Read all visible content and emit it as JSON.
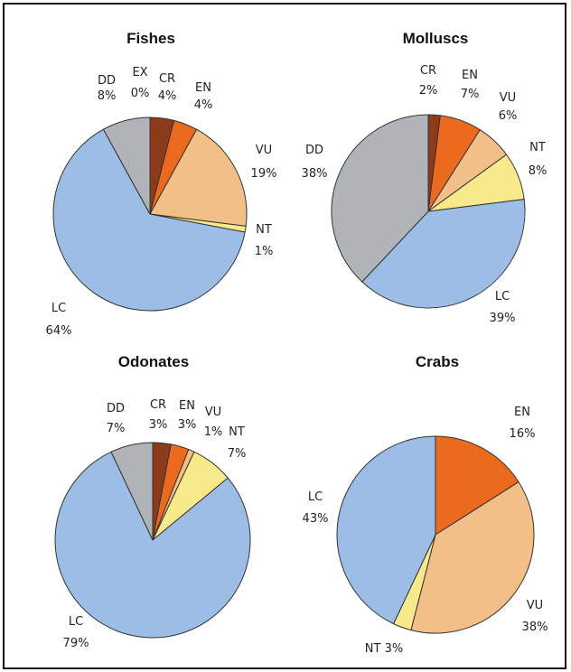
{
  "colors": {
    "EX": "#6b1e0e",
    "CR": "#8b3a1a",
    "EN": "#ec6a1e",
    "VU": "#f2bf88",
    "NT": "#f8ea8a",
    "LC": "#9cbde6",
    "DD": "#b0b4b8"
  },
  "chart_data": [
    {
      "type": "pie",
      "title": "Fishes",
      "slices": [
        {
          "category": "EX",
          "label_line1": "EX",
          "label_line2": "0%",
          "value": 0
        },
        {
          "category": "CR",
          "label_line1": "CR",
          "label_line2": "4%",
          "value": 4
        },
        {
          "category": "EN",
          "label_line1": "EN",
          "label_line2": "4%",
          "value": 4
        },
        {
          "category": "VU",
          "label_line1": "VU",
          "label_line2": "19%",
          "value": 19
        },
        {
          "category": "NT",
          "label_line1": "NT",
          "label_line2": "1%",
          "value": 1
        },
        {
          "category": "LC",
          "label_line1": "LC",
          "label_line2": "64%",
          "value": 64
        },
        {
          "category": "DD",
          "label_line1": "DD",
          "label_line2": "8%",
          "value": 8
        }
      ]
    },
    {
      "type": "pie",
      "title": "Molluscs",
      "slices": [
        {
          "category": "CR",
          "label_line1": "CR",
          "label_line2": "2%",
          "value": 2
        },
        {
          "category": "EN",
          "label_line1": "EN",
          "label_line2": "7%",
          "value": 7
        },
        {
          "category": "VU",
          "label_line1": "VU",
          "label_line2": "6%",
          "value": 6
        },
        {
          "category": "NT",
          "label_line1": "NT",
          "label_line2": "8%",
          "value": 8
        },
        {
          "category": "LC",
          "label_line1": "LC",
          "label_line2": "39%",
          "value": 39
        },
        {
          "category": "DD",
          "label_line1": "DD",
          "label_line2": "38%",
          "value": 38
        }
      ]
    },
    {
      "type": "pie",
      "title": "Odonates",
      "slices": [
        {
          "category": "CR",
          "label_line1": "CR",
          "label_line2": "3%",
          "value": 3
        },
        {
          "category": "EN",
          "label_line1": "EN",
          "label_line2": "3%",
          "value": 3
        },
        {
          "category": "VU",
          "label_line1": "VU",
          "label_line2": "1%",
          "value": 1
        },
        {
          "category": "NT",
          "label_line1": "NT",
          "label_line2": "7%",
          "value": 7
        },
        {
          "category": "LC",
          "label_line1": "LC",
          "label_line2": "79%",
          "value": 79
        },
        {
          "category": "DD",
          "label_line1": "DD",
          "label_line2": "7%",
          "value": 7
        }
      ]
    },
    {
      "type": "pie",
      "title": "Crabs",
      "slices": [
        {
          "category": "EN",
          "label_line1": "EN",
          "label_line2": "16%",
          "value": 16
        },
        {
          "category": "VU",
          "label_line1": "VU",
          "label_line2": "38%",
          "value": 38
        },
        {
          "category": "NT",
          "label_line1": "NT 3%",
          "label_line2": "",
          "value": 3
        },
        {
          "category": "LC",
          "label_line1": "LC",
          "label_line2": "43%",
          "value": 43
        }
      ]
    }
  ]
}
